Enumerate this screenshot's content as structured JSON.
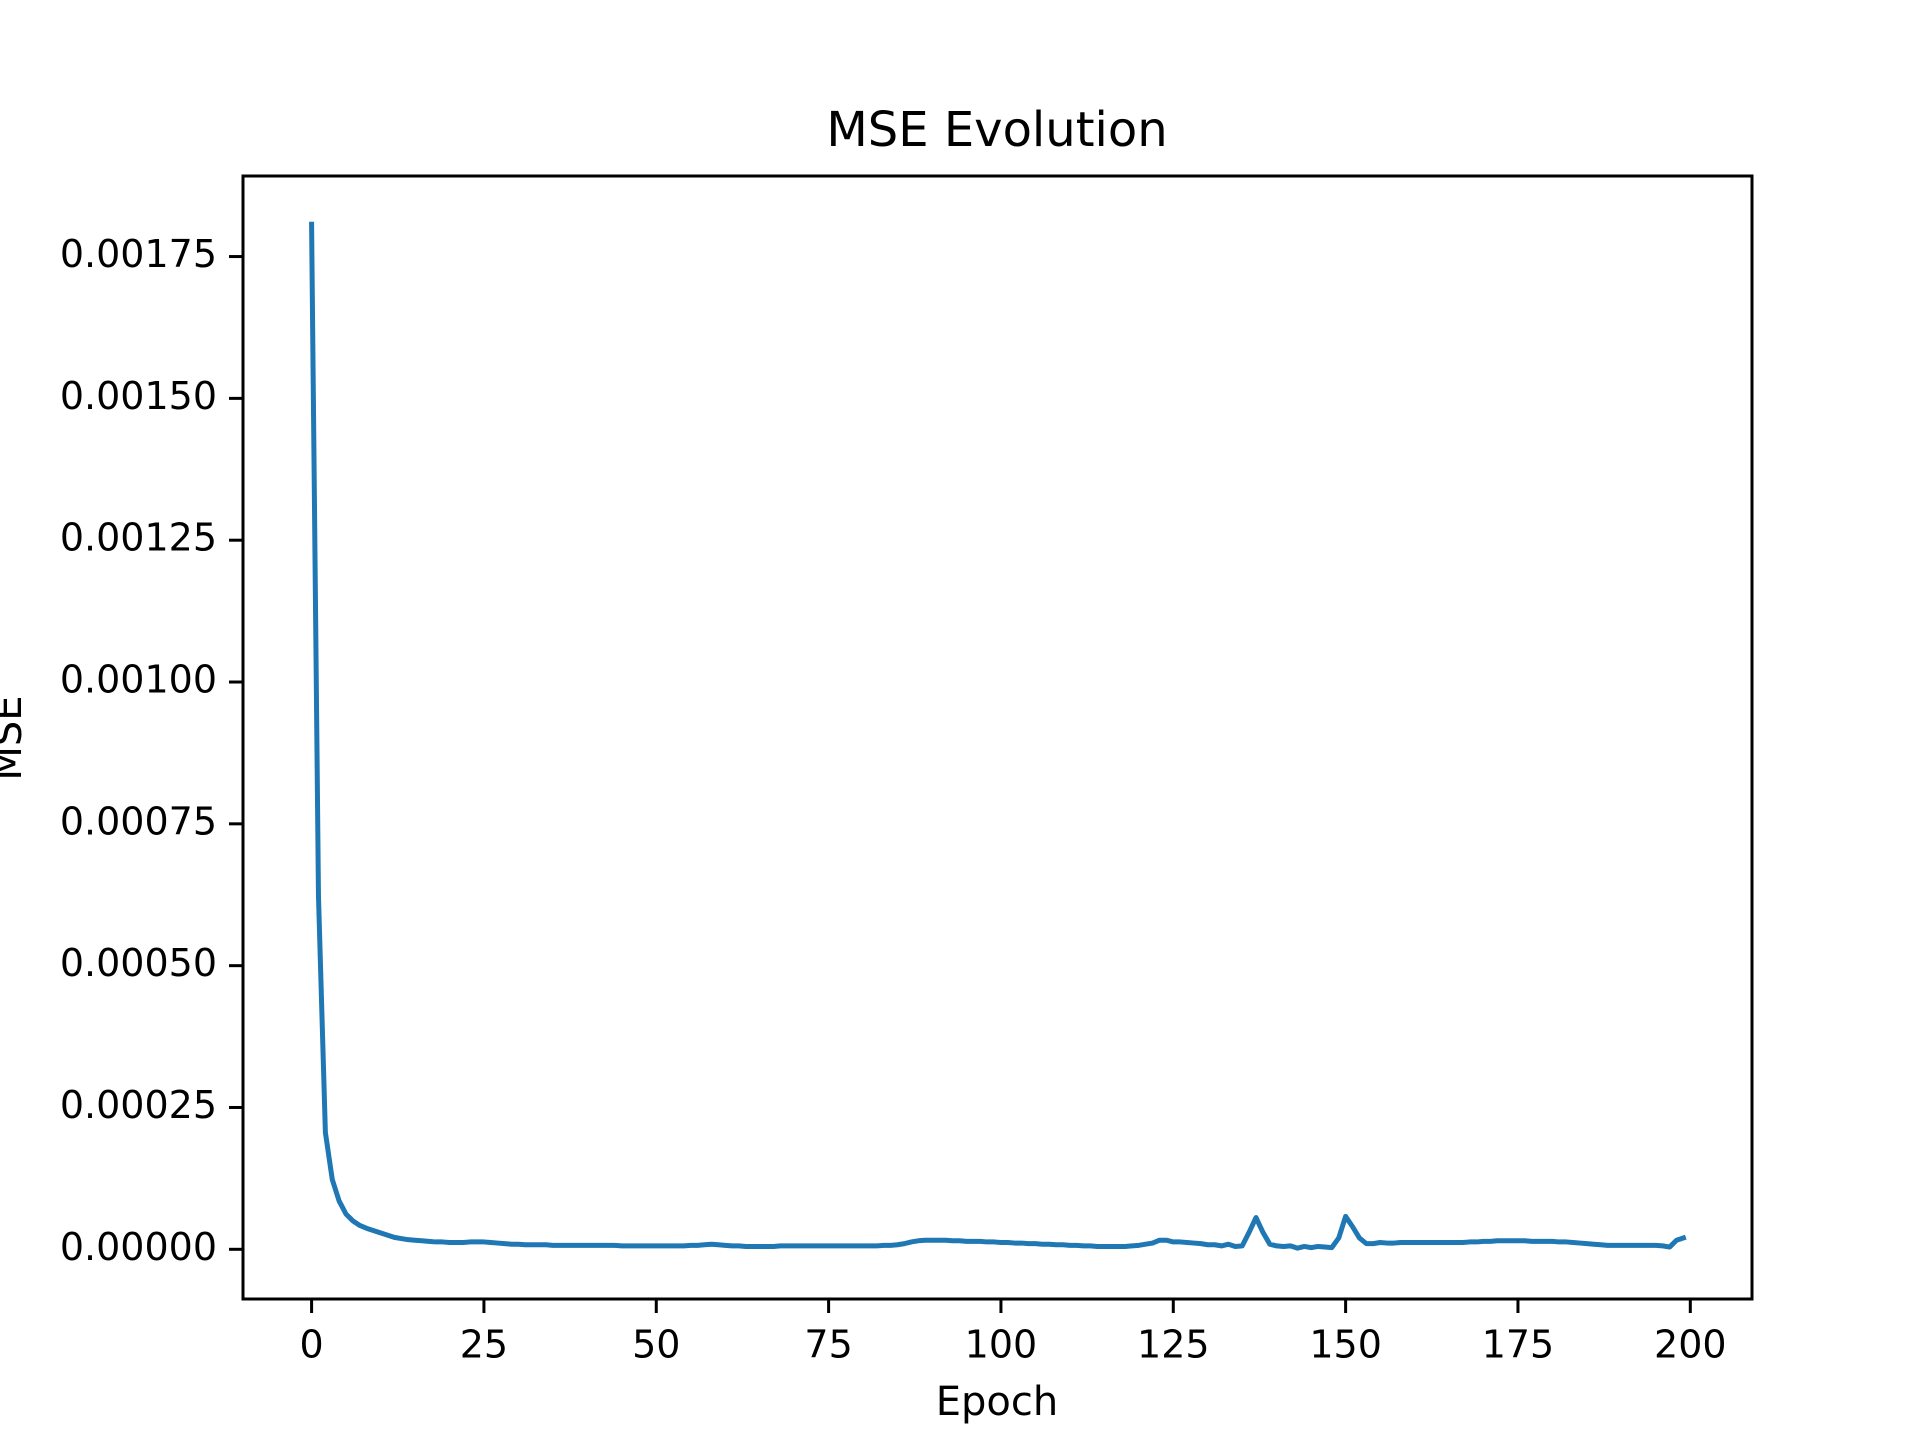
{
  "chart_data": {
    "type": "line",
    "title": "MSE Evolution",
    "xlabel": "Epoch",
    "ylabel": "MSE",
    "x": [
      0,
      1,
      2,
      3,
      4,
      5,
      6,
      7,
      8,
      9,
      10,
      11,
      12,
      13,
      14,
      15,
      16,
      17,
      18,
      19,
      20,
      21,
      22,
      23,
      24,
      25,
      26,
      27,
      28,
      29,
      30,
      31,
      32,
      33,
      34,
      35,
      36,
      37,
      38,
      39,
      40,
      41,
      42,
      43,
      44,
      45,
      46,
      47,
      48,
      49,
      50,
      51,
      52,
      53,
      54,
      55,
      56,
      57,
      58,
      59,
      60,
      61,
      62,
      63,
      64,
      65,
      66,
      67,
      68,
      69,
      70,
      71,
      72,
      73,
      74,
      75,
      76,
      77,
      78,
      79,
      80,
      81,
      82,
      83,
      84,
      85,
      86,
      87,
      88,
      89,
      90,
      91,
      92,
      93,
      94,
      95,
      96,
      97,
      98,
      99,
      100,
      101,
      102,
      103,
      104,
      105,
      106,
      107,
      108,
      109,
      110,
      111,
      112,
      113,
      114,
      115,
      116,
      117,
      118,
      119,
      120,
      121,
      122,
      123,
      124,
      125,
      126,
      127,
      128,
      129,
      130,
      131,
      132,
      133,
      134,
      135,
      136,
      137,
      138,
      139,
      140,
      141,
      142,
      143,
      144,
      145,
      146,
      147,
      148,
      149,
      150,
      151,
      152,
      153,
      154,
      155,
      156,
      157,
      158,
      159,
      160,
      161,
      162,
      163,
      164,
      165,
      166,
      167,
      168,
      169,
      170,
      171,
      172,
      173,
      174,
      175,
      176,
      177,
      178,
      179,
      180,
      181,
      182,
      183,
      184,
      185,
      186,
      187,
      188,
      189,
      190,
      191,
      192,
      193,
      194,
      195,
      196,
      197,
      198,
      199
    ],
    "series": [
      {
        "color": "#1f77b4",
        "values": [
          0.001807,
          0.000622,
          0.000206,
          0.000123,
          8.5e-05,
          6.2e-05,
          5e-05,
          4.2e-05,
          3.7e-05,
          3.3e-05,
          2.9e-05,
          2.5e-05,
          2.1e-05,
          1.9e-05,
          1.7e-05,
          1.6e-05,
          1.5e-05,
          1.4e-05,
          1.3e-05,
          1.3e-05,
          1.2e-05,
          1.2e-05,
          1.2e-05,
          1.3e-05,
          1.3e-05,
          1.3e-05,
          1.2e-05,
          1.1e-05,
          1e-05,
          9e-06,
          9e-06,
          8e-06,
          8e-06,
          8e-06,
          8e-06,
          7e-06,
          7e-06,
          7e-06,
          7e-06,
          7e-06,
          7e-06,
          7e-06,
          7e-06,
          7e-06,
          7e-06,
          6e-06,
          6e-06,
          6e-06,
          6e-06,
          6e-06,
          6e-06,
          6e-06,
          6e-06,
          6e-06,
          6e-06,
          7e-06,
          7e-06,
          8e-06,
          9e-06,
          8e-06,
          7e-06,
          6e-06,
          6e-06,
          5e-06,
          5e-06,
          5e-06,
          5e-06,
          5e-06,
          6e-06,
          6e-06,
          6e-06,
          6e-06,
          6e-06,
          6e-06,
          6e-06,
          6e-06,
          6e-06,
          6e-06,
          6e-06,
          6e-06,
          6e-06,
          6e-06,
          6e-06,
          7e-06,
          7e-06,
          8e-06,
          1e-05,
          1.3e-05,
          1.5e-05,
          1.6e-05,
          1.6e-05,
          1.6e-05,
          1.6e-05,
          1.5e-05,
          1.5e-05,
          1.4e-05,
          1.4e-05,
          1.4e-05,
          1.3e-05,
          1.3e-05,
          1.2e-05,
          1.2e-05,
          1.1e-05,
          1.1e-05,
          1e-05,
          1e-05,
          9e-06,
          9e-06,
          8e-06,
          8e-06,
          7e-06,
          7e-06,
          6e-06,
          6e-06,
          5e-06,
          5e-06,
          5e-06,
          5e-06,
          5e-06,
          6e-06,
          7e-06,
          9e-06,
          1.1e-05,
          1.6e-05,
          1.6e-05,
          1.3e-05,
          1.3e-05,
          1.2e-05,
          1.1e-05,
          1e-05,
          8e-06,
          8e-06,
          6e-06,
          9e-06,
          5e-06,
          6e-06,
          3e-05,
          5.6e-05,
          3e-05,
          9e-06,
          6e-06,
          5e-06,
          6e-06,
          2e-06,
          5e-06,
          3e-06,
          5e-06,
          4e-06,
          3e-06,
          2e-05,
          5.8e-05,
          4e-05,
          2e-05,
          1e-05,
          1e-05,
          1.2e-05,
          1.1e-05,
          1.1e-05,
          1.2e-05,
          1.2e-05,
          1.2e-05,
          1.2e-05,
          1.2e-05,
          1.2e-05,
          1.2e-05,
          1.2e-05,
          1.2e-05,
          1.2e-05,
          1.3e-05,
          1.3e-05,
          1.4e-05,
          1.4e-05,
          1.5e-05,
          1.5e-05,
          1.5e-05,
          1.5e-05,
          1.5e-05,
          1.4e-05,
          1.4e-05,
          1.4e-05,
          1.4e-05,
          1.3e-05,
          1.3e-05,
          1.2e-05,
          1.1e-05,
          1e-05,
          9e-06,
          8e-06,
          7e-06,
          7e-06,
          7e-06,
          7e-06,
          7e-06,
          7e-06,
          7e-06,
          7e-06,
          6e-06,
          4e-06,
          1.6e-05,
          2e-05
        ]
      }
    ],
    "xlim": [
      -9.95,
      208.95
    ],
    "xticks": [
      0,
      25,
      50,
      75,
      100,
      125,
      150,
      175,
      200
    ],
    "ylim": [
      -8.76e-05,
      0.001892
    ],
    "yticks": [
      {
        "value": 0,
        "label": "0.00000"
      },
      {
        "value": 0.00025,
        "label": "0.00025"
      },
      {
        "value": 0.0005,
        "label": "0.00050"
      },
      {
        "value": 0.00075,
        "label": "0.00075"
      },
      {
        "value": 0.001,
        "label": "0.00100"
      },
      {
        "value": 0.00125,
        "label": "0.00125"
      },
      {
        "value": 0.0015,
        "label": "0.00150"
      },
      {
        "value": 0.00175,
        "label": "0.00175"
      }
    ],
    "grid": false
  }
}
